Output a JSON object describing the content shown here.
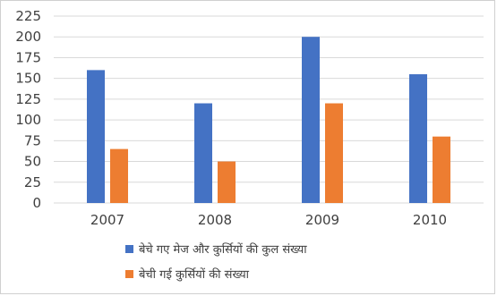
{
  "chart_data": {
    "type": "bar",
    "title": "",
    "xlabel": "",
    "ylabel": "",
    "categories": [
      "2007",
      "2008",
      "2009",
      "2010"
    ],
    "ylim": [
      0,
      225
    ],
    "yticks": [
      "0",
      "25",
      "50",
      "75",
      "100",
      "125",
      "150",
      "175",
      "200",
      "225"
    ],
    "grid": true,
    "legend_position": "bottom-left",
    "series": [
      {
        "name": "बेचे गए मेज और कुर्सियों की कुल संख्या",
        "color": "#4472C4",
        "values": [
          160,
          120,
          200,
          155
        ]
      },
      {
        "name": "बेची गई कुर्सियों की संख्या",
        "color": "#ED7D31",
        "values": [
          65,
          50,
          120,
          80
        ]
      }
    ]
  }
}
